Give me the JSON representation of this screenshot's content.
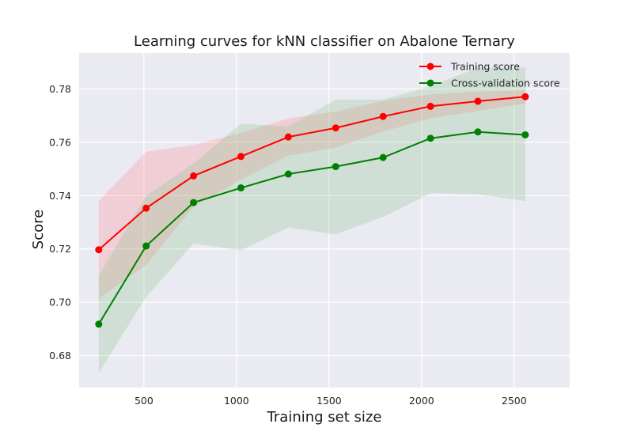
{
  "chart_data": {
    "type": "line",
    "title": "Learning curves for kNN classifier on Abalone Ternary",
    "xlabel": "Training set size",
    "ylabel": "Score",
    "xlim": [
      150,
      2800
    ],
    "ylim": [
      0.668,
      0.7935
    ],
    "xticks": [
      500,
      1000,
      1500,
      2000,
      2500
    ],
    "xtick_labels": [
      "500",
      "1000",
      "1500",
      "2000",
      "2500"
    ],
    "yticks": [
      0.68,
      0.7,
      0.72,
      0.74,
      0.76,
      0.78
    ],
    "ytick_labels": [
      "0.68",
      "0.70",
      "0.72",
      "0.74",
      "0.76",
      "0.78"
    ],
    "grid": true,
    "background": "#eaeaf2",
    "legend_position": "top-right",
    "x": [
      256,
      512,
      768,
      1024,
      1280,
      1536,
      1792,
      2048,
      2304,
      2560
    ],
    "series": [
      {
        "name": "Training score",
        "color": "#ff0000",
        "band_color": "#ff8080",
        "values": [
          0.7197,
          0.7353,
          0.7474,
          0.7547,
          0.762,
          0.7654,
          0.7697,
          0.7735,
          0.7754,
          0.7771
        ],
        "upper": [
          0.738,
          0.7565,
          0.759,
          0.7635,
          0.769,
          0.7715,
          0.7755,
          0.778,
          0.779,
          0.7795
        ],
        "lower": [
          0.7015,
          0.714,
          0.7358,
          0.746,
          0.755,
          0.758,
          0.764,
          0.769,
          0.7718,
          0.7745
        ]
      },
      {
        "name": "Cross-validation score",
        "color": "#008000",
        "band_color": "#7fbf7f",
        "values": [
          0.6918,
          0.7211,
          0.7374,
          0.7429,
          0.7481,
          0.7509,
          0.7543,
          0.7615,
          0.7639,
          0.7628
        ],
        "upper": [
          0.71,
          0.74,
          0.752,
          0.767,
          0.766,
          0.776,
          0.776,
          0.781,
          0.788,
          0.788
        ],
        "lower": [
          0.6735,
          0.702,
          0.722,
          0.7195,
          0.728,
          0.7255,
          0.732,
          0.741,
          0.7405,
          0.738
        ]
      }
    ]
  }
}
